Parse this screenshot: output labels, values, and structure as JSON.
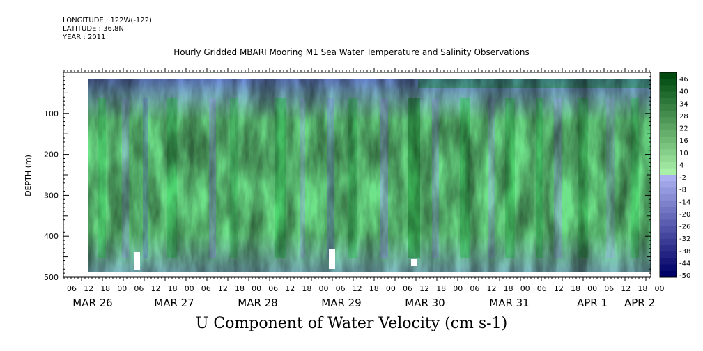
{
  "header": {
    "longitude": "LONGITUDE : 122W(-122)",
    "latitude": "LATITUDE : 36.8N",
    "year": "YEAR : 2011"
  },
  "chart_data": {
    "type": "heatmap",
    "title": "Hourly Gridded MBARI Mooring M1 Sea Water Temperature and Salinity Observations",
    "variable_title": "U Component of Water Velocity (cm s-1)",
    "xlabel": "",
    "ylabel": "DEPTH (m)",
    "y_ticks": [
      100,
      200,
      300,
      400,
      500
    ],
    "ylim": [
      500,
      0
    ],
    "y_data_range": [
      20,
      485
    ],
    "x_hour_labels": [
      "06",
      "12",
      "18",
      "00",
      "06",
      "12",
      "18",
      "00",
      "06",
      "12",
      "18",
      "00",
      "06",
      "12",
      "18",
      "00",
      "06",
      "12",
      "18",
      "00",
      "06",
      "12",
      "18",
      "00",
      "06",
      "12",
      "18",
      "00",
      "06",
      "12",
      "18",
      "00",
      "06",
      "12",
      "18",
      "00"
    ],
    "x_day_labels": [
      "MAR 26",
      "MAR 27",
      "MAR 28",
      "MAR 29",
      "MAR 30",
      "MAR 31",
      "APR  1",
      "APR  2"
    ],
    "colorbar": {
      "labels": [
        "46",
        "40",
        "34",
        "28",
        "22",
        "16",
        "10",
        "4",
        "-2",
        "-8",
        "-14",
        "-20",
        "-26",
        "-32",
        "-38",
        "-44",
        "-50"
      ],
      "range": [
        -50,
        46
      ],
      "negative_color_dark": "#000066",
      "negative_color_light": "#aab0f0",
      "positive_color_light": "#a8f0a8",
      "positive_color_dark": "#004a10"
    }
  }
}
